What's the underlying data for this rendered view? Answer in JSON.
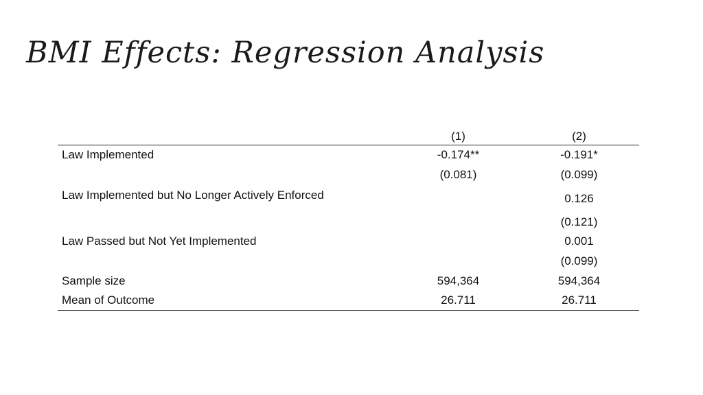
{
  "title": "BMI Effects: Regression Analysis",
  "table": {
    "columns": [
      "",
      "(1)",
      "(2)"
    ],
    "rows": [
      {
        "label": "Law Implemented",
        "col1": "-0.174**",
        "col2": "-0.191*"
      },
      {
        "label": "",
        "col1": "(0.081)",
        "col2": "(0.099)"
      },
      {
        "label": "Law Implemented but No Longer Actively Enforced",
        "col1": "",
        "col2": "0.126"
      },
      {
        "label": "",
        "col1": "",
        "col2": "(0.121)"
      },
      {
        "label": "Law Passed but Not Yet Implemented",
        "col1": "",
        "col2": "0.001"
      },
      {
        "label": "",
        "col1": "",
        "col2": "(0.099)"
      },
      {
        "label": "Sample size",
        "col1": "594,364",
        "col2": "594,364"
      },
      {
        "label": "Mean of Outcome",
        "col1": "26.711",
        "col2": "26.711"
      }
    ]
  }
}
